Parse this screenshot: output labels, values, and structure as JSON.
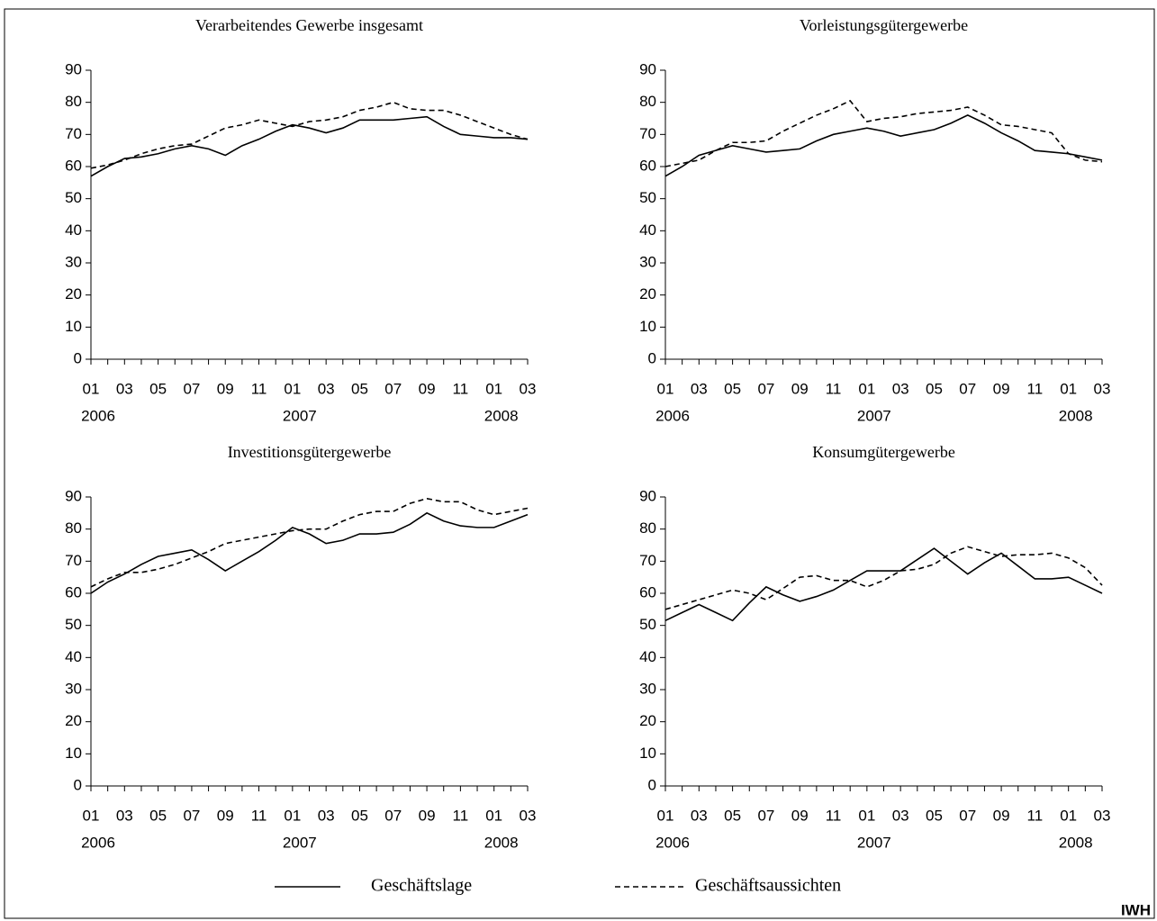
{
  "chart_data": [
    {
      "type": "line",
      "title": "Verarbeitendes Gewerbe insgesamt",
      "categories": [
        "01",
        null,
        "03",
        null,
        "05",
        null,
        "07",
        null,
        "09",
        null,
        "11",
        null,
        "01",
        null,
        "03",
        null,
        "05",
        null,
        "07",
        null,
        "09",
        null,
        "11",
        null,
        "01",
        null,
        "03"
      ],
      "categories2": [
        "2006",
        null,
        null,
        null,
        null,
        null,
        null,
        null,
        null,
        null,
        null,
        null,
        "2007",
        null,
        null,
        null,
        null,
        null,
        null,
        null,
        null,
        null,
        null,
        null,
        "2008",
        null,
        null
      ],
      "ylim": [
        0,
        90
      ],
      "yticks": [
        0,
        10,
        20,
        30,
        40,
        50,
        60,
        70,
        80,
        90
      ],
      "series": [
        {
          "values": [
            57,
            60,
            62.5,
            63,
            64,
            65.5,
            66.5,
            65.5,
            63.5,
            66.5,
            68.5,
            71,
            73,
            72,
            70.5,
            72,
            74.5,
            74.5,
            74.5,
            75,
            75.5,
            72.5,
            70,
            69.5,
            69,
            69,
            68.5
          ]
        },
        {
          "values": [
            59.5,
            60.5,
            62,
            64,
            65.5,
            66.5,
            67,
            69.5,
            72,
            73,
            74.5,
            73.5,
            72.5,
            74,
            74.5,
            75.5,
            77.5,
            78.5,
            80,
            78,
            77.5,
            77.5,
            76,
            74,
            72,
            70,
            68.5
          ]
        }
      ]
    },
    {
      "type": "line",
      "title": "Vorleistungsgütergewerbe",
      "categories": [
        "01",
        null,
        "03",
        null,
        "05",
        null,
        "07",
        null,
        "09",
        null,
        "11",
        null,
        "01",
        null,
        "03",
        null,
        "05",
        null,
        "07",
        null,
        "09",
        null,
        "11",
        null,
        "01",
        null,
        "03"
      ],
      "categories2": [
        "2006",
        null,
        null,
        null,
        null,
        null,
        null,
        null,
        null,
        null,
        null,
        null,
        "2007",
        null,
        null,
        null,
        null,
        null,
        null,
        null,
        null,
        null,
        null,
        null,
        "2008",
        null,
        null
      ],
      "ylim": [
        0,
        90
      ],
      "yticks": [
        0,
        10,
        20,
        30,
        40,
        50,
        60,
        70,
        80,
        90
      ],
      "series": [
        {
          "values": [
            57,
            60,
            63.5,
            65,
            66.5,
            65.5,
            64.5,
            65,
            65.5,
            68,
            70,
            71,
            72,
            71,
            69.5,
            70.5,
            71.5,
            73.5,
            76,
            73.5,
            70.5,
            68,
            65,
            64.5,
            64,
            63,
            62
          ]
        },
        {
          "values": [
            60,
            61,
            62,
            65,
            67.5,
            67.5,
            68,
            71,
            73.5,
            76,
            78,
            80.5,
            74,
            75,
            75.5,
            76.5,
            77,
            77.5,
            78.5,
            76,
            73,
            72.5,
            71.5,
            70.5,
            64,
            62,
            61.5
          ]
        }
      ]
    },
    {
      "type": "line",
      "title": "Investitionsgütergewerbe",
      "categories": [
        "01",
        null,
        "03",
        null,
        "05",
        null,
        "07",
        null,
        "09",
        null,
        "11",
        null,
        "01",
        null,
        "03",
        null,
        "05",
        null,
        "07",
        null,
        "09",
        null,
        "11",
        null,
        "01",
        null,
        "03"
      ],
      "categories2": [
        "2006",
        null,
        null,
        null,
        null,
        null,
        null,
        null,
        null,
        null,
        null,
        null,
        "2007",
        null,
        null,
        null,
        null,
        null,
        null,
        null,
        null,
        null,
        null,
        null,
        "2008",
        null,
        null
      ],
      "ylim": [
        0,
        90
      ],
      "yticks": [
        0,
        10,
        20,
        30,
        40,
        50,
        60,
        70,
        80,
        90
      ],
      "series": [
        {
          "values": [
            60,
            63.5,
            66,
            69,
            71.5,
            72.5,
            73.5,
            70.5,
            67,
            70,
            73,
            76.5,
            80.5,
            78.5,
            75.5,
            76.5,
            78.5,
            78.5,
            79,
            81.5,
            85,
            82.5,
            81,
            80.5,
            80.5,
            82.5,
            84.5
          ]
        },
        {
          "values": [
            62,
            64.5,
            66.5,
            66.5,
            67.5,
            69,
            71,
            73,
            75.5,
            76.5,
            77.5,
            78.5,
            79.5,
            80,
            80,
            82.5,
            84.5,
            85.5,
            85.5,
            88,
            89.5,
            88.5,
            88.5,
            86,
            84.5,
            85.5,
            86.5
          ]
        }
      ]
    },
    {
      "type": "line",
      "title": "Konsumgütergewerbe",
      "categories": [
        "01",
        null,
        "03",
        null,
        "05",
        null,
        "07",
        null,
        "09",
        null,
        "11",
        null,
        "01",
        null,
        "03",
        null,
        "05",
        null,
        "07",
        null,
        "09",
        null,
        "11",
        null,
        "01",
        null,
        "03"
      ],
      "categories2": [
        "2006",
        null,
        null,
        null,
        null,
        null,
        null,
        null,
        null,
        null,
        null,
        null,
        "2007",
        null,
        null,
        null,
        null,
        null,
        null,
        null,
        null,
        null,
        null,
        null,
        "2008",
        null,
        null
      ],
      "ylim": [
        0,
        90
      ],
      "yticks": [
        0,
        10,
        20,
        30,
        40,
        50,
        60,
        70,
        80,
        90
      ],
      "series": [
        {
          "values": [
            51.5,
            54,
            56.5,
            54,
            51.5,
            57,
            62,
            59.5,
            57.5,
            59,
            61,
            64,
            67,
            67,
            67,
            70.5,
            74,
            70,
            66,
            69.5,
            72.5,
            68.5,
            64.5,
            64.5,
            65,
            62.5,
            60
          ]
        },
        {
          "values": [
            55,
            56.5,
            58,
            59.5,
            61,
            60,
            58,
            61.5,
            65,
            65.5,
            64,
            64,
            62,
            64,
            67,
            67.5,
            69,
            72.5,
            74.5,
            73,
            71.5,
            72,
            72,
            72.5,
            71,
            68,
            62.5
          ]
        }
      ]
    }
  ],
  "legend": [
    {
      "name": "Geschäftslage",
      "color": "#000000",
      "line_style": "solid"
    },
    {
      "name": "Geschäftsaussichten",
      "color": "#000000",
      "line_style": "dashed"
    }
  ],
  "footer": "IWH"
}
